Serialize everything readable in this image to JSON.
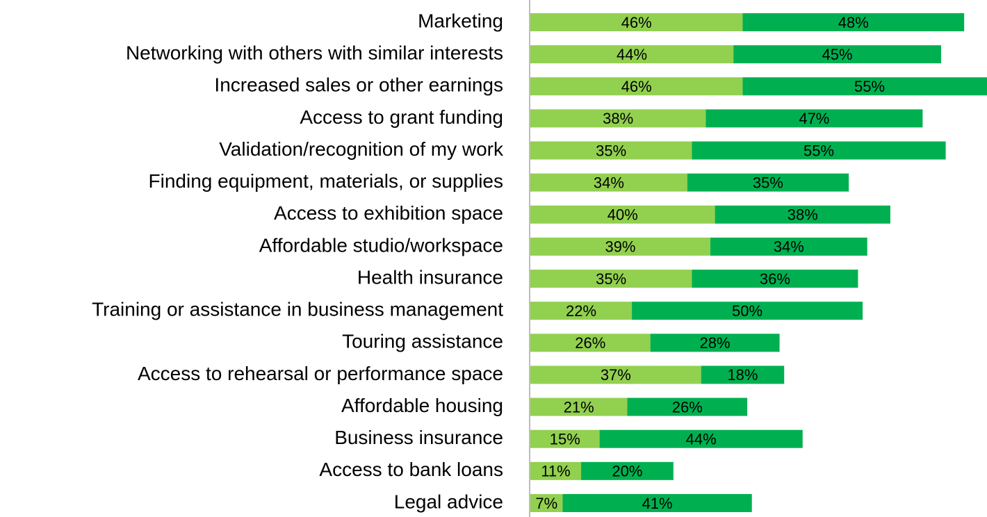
{
  "chart_data": {
    "type": "stacked-bar-horizontal",
    "categories": [
      "Marketing",
      "Networking with others with similar interests",
      "Increased sales or other earnings",
      "Access to grant funding",
      "Validation/recognition of my work",
      "Finding equipment, materials, or supplies",
      "Access to exhibition space",
      "Affordable studio/workspace",
      "Health insurance",
      "Training or assistance in business management",
      "Touring assistance",
      "Access to rehearsal or performance space",
      "Affordable housing",
      "Business insurance",
      "Access to bank loans",
      "Legal advice"
    ],
    "series": [
      {
        "color": "#92d050",
        "values": [
          46,
          44,
          46,
          38,
          35,
          34,
          40,
          39,
          35,
          22,
          26,
          37,
          21,
          15,
          11,
          7
        ],
        "value_labels": [
          "46%",
          "44%",
          "46%",
          "38%",
          "35%",
          "34%",
          "40%",
          "39%",
          "35%",
          "22%",
          "26%",
          "37%",
          "21%",
          "15%",
          "11%",
          "7%"
        ]
      },
      {
        "color": "#00b050",
        "values": [
          48,
          45,
          55,
          47,
          55,
          35,
          38,
          34,
          36,
          50,
          28,
          18,
          26,
          44,
          20,
          41
        ],
        "value_labels": [
          "48%",
          "45%",
          "55%",
          "47%",
          "55%",
          "35%",
          "38%",
          "34%",
          "36%",
          "50%",
          "28%",
          "18%",
          "26%",
          "44%",
          "20%",
          "41%"
        ]
      }
    ]
  }
}
